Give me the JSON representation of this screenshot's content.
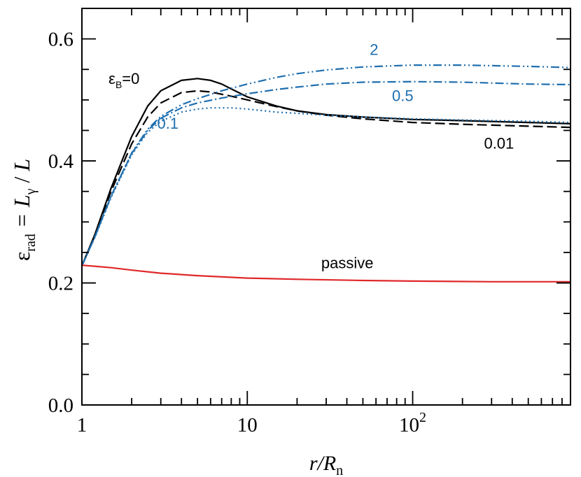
{
  "chart_data": {
    "type": "line",
    "title": "",
    "xlabel": {
      "main": "r/R",
      "sub": "n"
    },
    "ylabel": {
      "eps": "ε",
      "eps_sub": "rad",
      "eq": "=",
      "L1": "L",
      "gamma_sub": "γ",
      "slash": "/",
      "L2": "L"
    },
    "xscale": "log",
    "xlim": [
      1,
      900
    ],
    "ylim": [
      0,
      0.65
    ],
    "x_ticks": [
      {
        "value": 1,
        "label": "1"
      },
      {
        "value": 10,
        "label": "10"
      },
      {
        "value": 100,
        "label": "10",
        "sup": "2"
      }
    ],
    "y_ticks": [
      {
        "value": 0.0,
        "label": "0.0"
      },
      {
        "value": 0.2,
        "label": "0.2"
      },
      {
        "value": 0.4,
        "label": "0.4"
      },
      {
        "value": 0.6,
        "label": "0.6"
      }
    ],
    "grid": false,
    "series": [
      {
        "style": "solid",
        "color": "#000000",
        "x": [
          1,
          1.2,
          1.5,
          2,
          2.5,
          3,
          4,
          5,
          6,
          7,
          8,
          10,
          15,
          20,
          30,
          50,
          100,
          200,
          500,
          900
        ],
        "y": [
          0.228,
          0.28,
          0.355,
          0.44,
          0.49,
          0.515,
          0.532,
          0.535,
          0.532,
          0.526,
          0.518,
          0.505,
          0.49,
          0.482,
          0.476,
          0.472,
          0.468,
          0.466,
          0.463,
          0.461
        ]
      },
      {
        "style": "dashed",
        "color": "#000000",
        "x": [
          1,
          1.2,
          1.5,
          2,
          2.5,
          3,
          4,
          5,
          6,
          8,
          10,
          15,
          20,
          30,
          50,
          100,
          200,
          500,
          900
        ],
        "y": [
          0.228,
          0.278,
          0.35,
          0.428,
          0.472,
          0.495,
          0.512,
          0.515,
          0.513,
          0.506,
          0.5,
          0.489,
          0.482,
          0.475,
          0.469,
          0.463,
          0.46,
          0.457,
          0.455
        ]
      },
      {
        "style": "dotted",
        "color": "#1f6faf",
        "x": [
          1,
          1.2,
          1.5,
          2,
          2.5,
          3,
          4,
          5,
          6,
          8,
          10,
          15,
          20,
          30,
          50,
          100,
          200,
          500,
          900
        ],
        "y": [
          0.228,
          0.275,
          0.34,
          0.41,
          0.447,
          0.465,
          0.48,
          0.485,
          0.487,
          0.487,
          0.485,
          0.48,
          0.478,
          0.475,
          0.472,
          0.469,
          0.467,
          0.465,
          0.463
        ]
      },
      {
        "style": "dashdot",
        "color": "#1f6faf",
        "x": [
          1,
          1.2,
          1.5,
          2,
          2.5,
          3,
          4,
          5,
          7,
          10,
          15,
          20,
          30,
          50,
          100,
          200,
          500,
          900
        ],
        "y": [
          0.228,
          0.276,
          0.342,
          0.412,
          0.45,
          0.47,
          0.487,
          0.495,
          0.503,
          0.51,
          0.517,
          0.521,
          0.526,
          0.529,
          0.53,
          0.529,
          0.526,
          0.525
        ]
      },
      {
        "style": "dashdotdot",
        "color": "#1f6faf",
        "x": [
          1,
          1.2,
          1.5,
          2,
          2.5,
          3,
          4,
          5,
          7,
          10,
          15,
          20,
          30,
          50,
          100,
          200,
          500,
          900
        ],
        "y": [
          0.228,
          0.276,
          0.342,
          0.413,
          0.452,
          0.473,
          0.492,
          0.502,
          0.515,
          0.526,
          0.537,
          0.543,
          0.549,
          0.554,
          0.557,
          0.557,
          0.555,
          0.553
        ]
      },
      {
        "style": "solid",
        "color": "#e0282a",
        "x": [
          1,
          1.5,
          2,
          3,
          5,
          10,
          20,
          50,
          100,
          300,
          900
        ],
        "y": [
          0.229,
          0.225,
          0.221,
          0.216,
          0.212,
          0.208,
          0.206,
          0.204,
          0.203,
          0.202,
          0.202
        ]
      }
    ],
    "annotations": [
      {
        "text": "ε",
        "sub": "B",
        "suffix": "=0",
        "x": 1.45,
        "y": 0.526,
        "color": "#000000"
      },
      {
        "text": "2",
        "x": 55,
        "y": 0.574,
        "color": "#1f6faf"
      },
      {
        "text": "0.5",
        "x": 75,
        "y": 0.498,
        "color": "#1f6faf"
      },
      {
        "text": "0.1",
        "x": 2.85,
        "y": 0.453,
        "color": "#1f6faf"
      },
      {
        "text": "0.01",
        "x": 270,
        "y": 0.42,
        "color": "#000000"
      },
      {
        "text": "passive",
        "x": 28,
        "y": 0.224,
        "color": "#000000"
      }
    ]
  }
}
